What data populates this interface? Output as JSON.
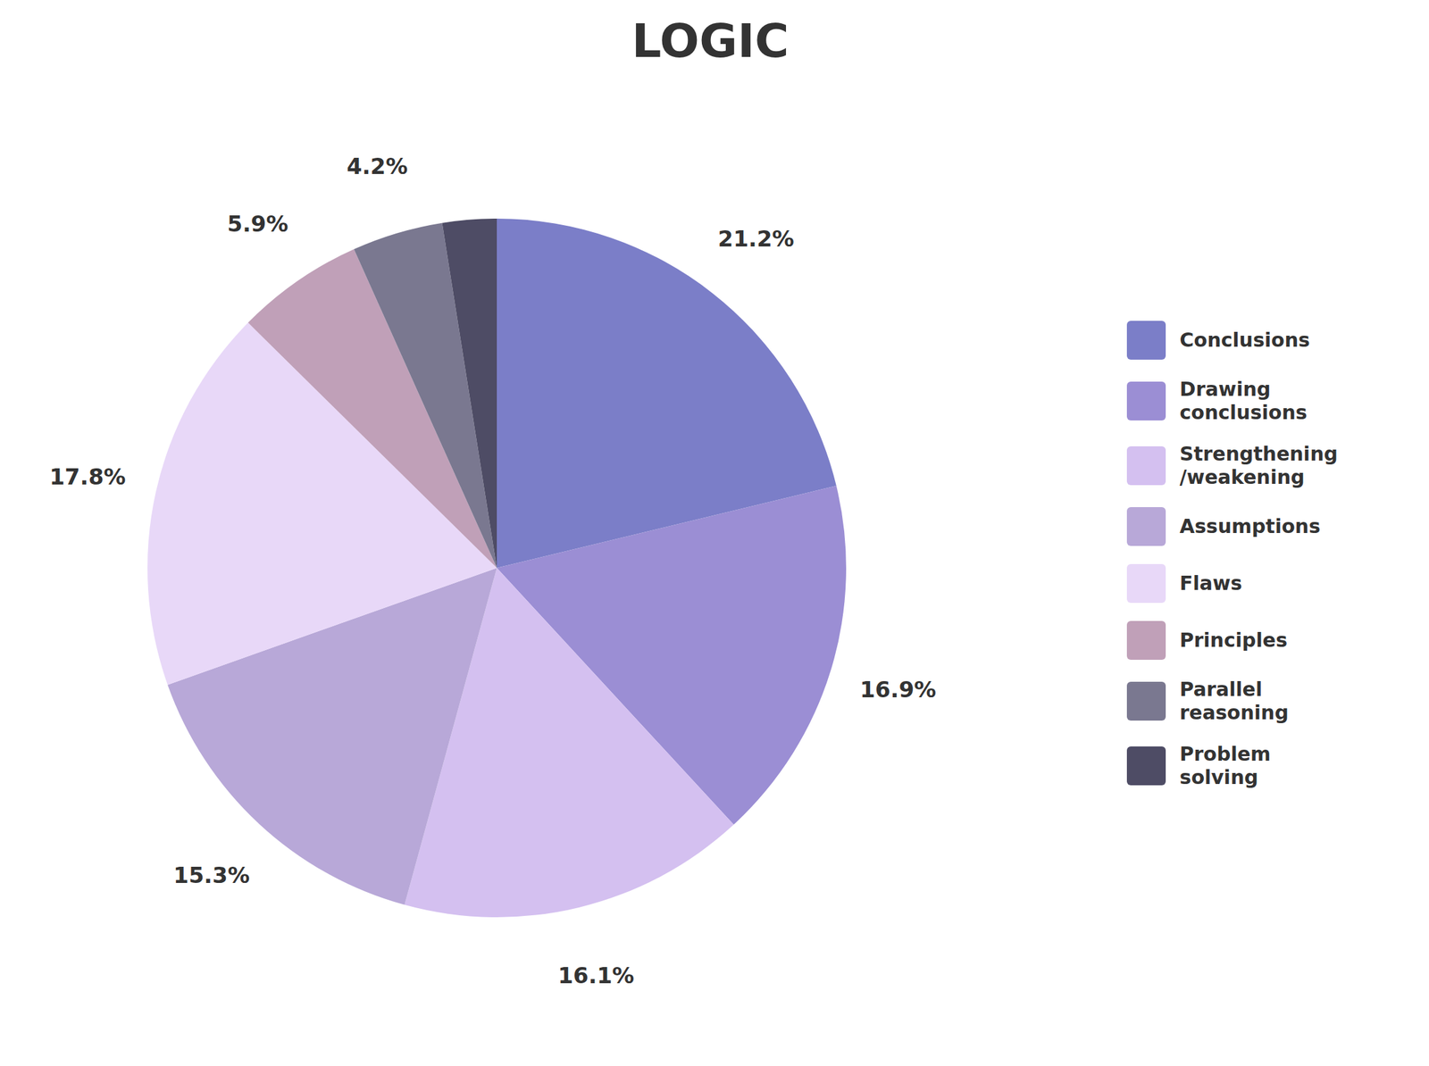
{
  "chart_data": {
    "type": "pie",
    "title": "LOGIC",
    "categories": [
      "Conclusions",
      "Drawing\nconclusions",
      "Strengthening\n/weakening",
      "Assumptions",
      "Flaws",
      "Principles",
      "Parallel\nreasoning",
      "Problem\nsolving"
    ],
    "values": [
      21.2,
      16.9,
      16.1,
      15.3,
      17.8,
      5.9,
      4.2,
      2.5
    ],
    "value_labels": [
      "21.2%",
      "16.9%",
      "16.1%",
      "15.3%",
      "17.8%",
      "5.9%",
      "4.2%",
      null
    ],
    "colors": [
      "#7b7ec8",
      "#9b8ed4",
      "#d4c0f0",
      "#b8a8d8",
      "#e8d8f8",
      "#c0a0b8",
      "#7a7890",
      "#4e4c65"
    ],
    "data_labels": true
  }
}
